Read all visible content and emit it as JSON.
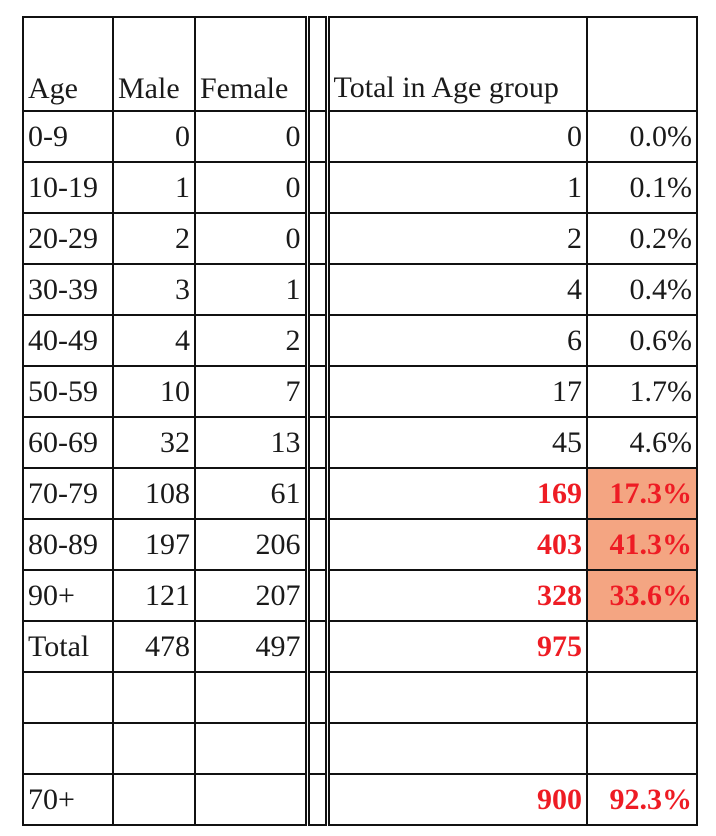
{
  "headers": {
    "age": "Age",
    "male": "Male",
    "female": "Female",
    "total": "Total in Age group",
    "pct": ""
  },
  "rows": [
    {
      "age": "0-9",
      "male": "0",
      "female": "0",
      "total": "0",
      "pct": "0.0%"
    },
    {
      "age": "10-19",
      "male": "1",
      "female": "0",
      "total": "1",
      "pct": "0.1%"
    },
    {
      "age": "20-29",
      "male": "2",
      "female": "0",
      "total": "2",
      "pct": "0.2%"
    },
    {
      "age": "30-39",
      "male": "3",
      "female": "1",
      "total": "4",
      "pct": "0.4%"
    },
    {
      "age": "40-49",
      "male": "4",
      "female": "2",
      "total": "6",
      "pct": "0.6%"
    },
    {
      "age": "50-59",
      "male": "10",
      "female": "7",
      "total": "17",
      "pct": "1.7%"
    },
    {
      "age": "60-69",
      "male": "32",
      "female": "13",
      "total": "45",
      "pct": "4.6%"
    },
    {
      "age": "70-79",
      "male": "108",
      "female": "61",
      "total": "169",
      "pct": "17.3%"
    },
    {
      "age": "80-89",
      "male": "197",
      "female": "206",
      "total": "403",
      "pct": "41.3%"
    },
    {
      "age": "90+",
      "male": "121",
      "female": "207",
      "total": "328",
      "pct": "33.6%"
    },
    {
      "age": "Total",
      "male": "478",
      "female": "497",
      "total": "975",
      "pct": ""
    },
    {
      "age": "",
      "male": "",
      "female": "",
      "total": "",
      "pct": ""
    },
    {
      "age": "",
      "male": "",
      "female": "",
      "total": "",
      "pct": ""
    },
    {
      "age": "70+",
      "male": "",
      "female": "",
      "total": "900",
      "pct": "92.3%"
    }
  ],
  "colors": {
    "highlight_text": "#ee1c24",
    "highlight_fill": "#f4a582"
  }
}
